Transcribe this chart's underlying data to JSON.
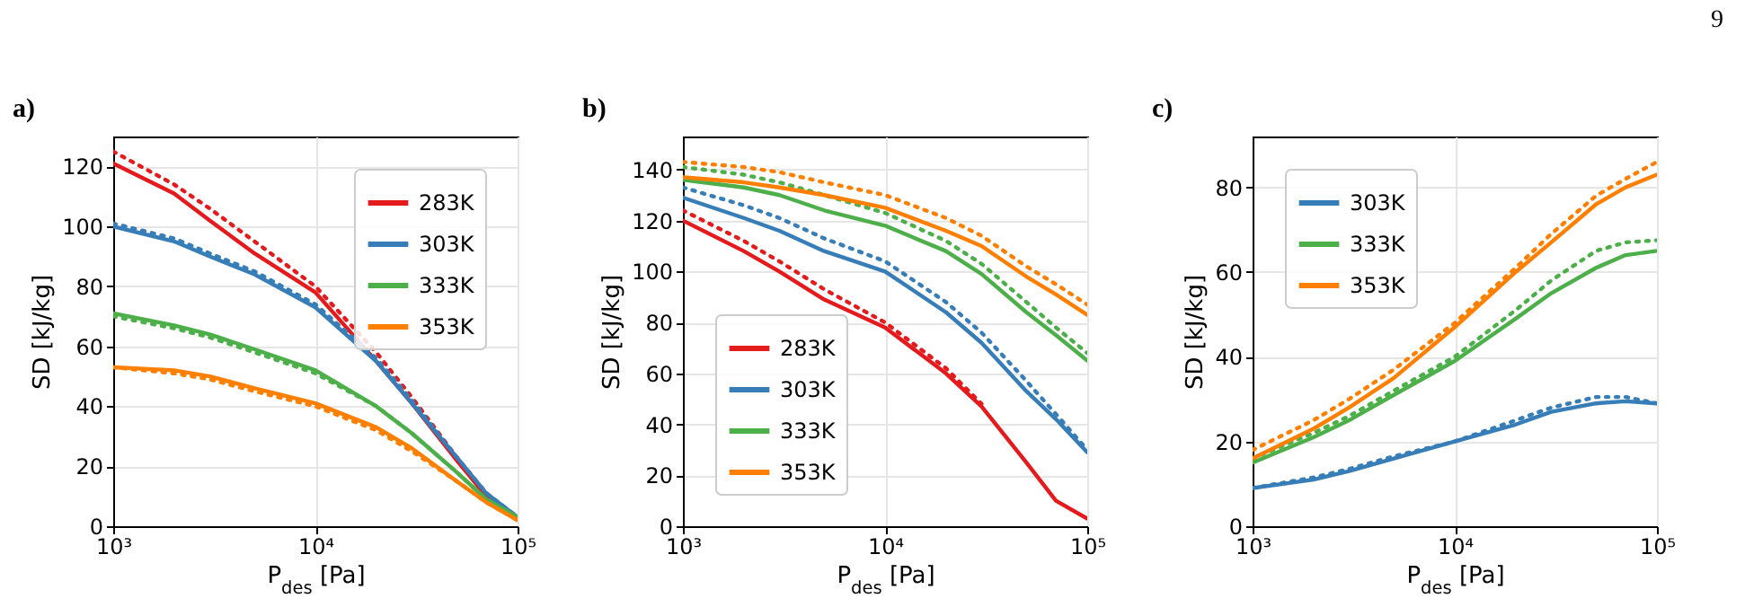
{
  "chart_data": [
    {
      "type": "line",
      "title": "a)",
      "xlabel": "P$_{des}$ [Pa]",
      "ylabel": "SD [kJ/kg]",
      "log": "x",
      "grid": true,
      "legend": "top right",
      "line_style": "solid",
      "marker": "none",
      "x": [
        1000,
        2000,
        3000,
        5000,
        10000,
        20000,
        30000,
        50000,
        70000,
        100000
      ],
      "xlim": [
        1000,
        100000
      ],
      "xticks": [
        {
          "value": 1000,
          "label": "10³"
        },
        {
          "value": 10000,
          "label": "10⁴"
        },
        {
          "value": 100000,
          "label": "10⁵"
        }
      ],
      "ylim": [
        0,
        130
      ],
      "yticks": [
        0,
        20,
        40,
        60,
        80,
        100,
        120
      ],
      "series": [
        {
          "name": "283K",
          "color": "#e41a1c",
          "values": [
            121,
            111,
            102,
            91,
            78,
            55,
            41,
            22,
            10,
            3
          ]
        },
        {
          "color": "#e41a1c",
          "line_style": "dotted",
          "values": [
            125,
            114,
            106,
            95,
            80,
            58,
            43,
            23,
            11,
            3
          ]
        },
        {
          "name": "303K",
          "color": "#377eb8",
          "values": [
            100,
            95,
            90,
            84,
            73,
            55,
            41,
            23,
            11,
            3
          ]
        },
        {
          "color": "#377eb8",
          "line_style": "dotted",
          "values": [
            101,
            96,
            91,
            85,
            74,
            56,
            42,
            23,
            11,
            3
          ]
        },
        {
          "name": "333K",
          "color": "#4daf4a",
          "values": [
            71,
            67,
            64,
            59,
            52,
            40,
            31,
            18,
            9,
            3
          ]
        },
        {
          "color": "#4daf4a",
          "line_style": "dotted",
          "values": [
            70,
            66,
            63,
            58,
            51,
            40,
            31,
            18,
            9,
            3
          ]
        },
        {
          "name": "353K",
          "color": "#ff7f00",
          "values": [
            53,
            52,
            50,
            46,
            41,
            33,
            26,
            15,
            8,
            2
          ]
        },
        {
          "color": "#ff7f00",
          "line_style": "dotted",
          "values": [
            53,
            51,
            49,
            45,
            40,
            32,
            25,
            15,
            8,
            2
          ]
        }
      ]
    },
    {
      "type": "line",
      "title": "b)",
      "xlabel": "P$_{des}$ [Pa]",
      "ylabel": "SD [kJ/kg]",
      "log": "x",
      "grid": true,
      "legend": "bottom left",
      "line_style": "solid",
      "marker": "none",
      "x": [
        1000,
        2000,
        3000,
        5000,
        10000,
        20000,
        30000,
        50000,
        70000,
        100000
      ],
      "xlim": [
        1000,
        100000
      ],
      "xticks": [
        {
          "value": 1000,
          "label": "10³"
        },
        {
          "value": 10000,
          "label": "10⁴"
        },
        {
          "value": 100000,
          "label": "10⁵"
        }
      ],
      "ylim": [
        0,
        153
      ],
      "yticks": [
        0,
        20,
        40,
        60,
        80,
        100,
        120,
        140
      ],
      "series": [
        {
          "name": "283K",
          "color": "#e41a1c",
          "values": [
            120,
            108,
            100,
            89,
            78,
            60,
            47,
            25,
            10,
            3
          ]
        },
        {
          "color": "#e41a1c",
          "line_style": "dotted",
          "values": [
            124,
            112,
            104,
            93,
            80,
            62,
            48,
            null,
            null,
            null
          ]
        },
        {
          "name": "303K",
          "color": "#377eb8",
          "values": [
            129,
            121,
            116,
            108,
            100,
            84,
            72,
            53,
            42,
            29
          ]
        },
        {
          "color": "#377eb8",
          "line_style": "dotted",
          "values": [
            133,
            126,
            121,
            113,
            104,
            88,
            76,
            57,
            44,
            30
          ]
        },
        {
          "name": "333K",
          "color": "#4daf4a",
          "values": [
            136,
            133,
            130,
            124,
            118,
            108,
            99,
            84,
            75,
            65
          ]
        },
        {
          "color": "#4daf4a",
          "line_style": "dotted",
          "values": [
            141,
            138,
            135,
            130,
            123,
            112,
            103,
            88,
            78,
            68
          ]
        },
        {
          "name": "353K",
          "color": "#ff7f00",
          "values": [
            137,
            135,
            133,
            130,
            125,
            116,
            110,
            98,
            91,
            83
          ]
        },
        {
          "color": "#ff7f00",
          "line_style": "dotted",
          "values": [
            143,
            141,
            139,
            135,
            130,
            121,
            114,
            102,
            95,
            87
          ]
        }
      ]
    },
    {
      "type": "line",
      "title": "c)",
      "xlabel": "P$_{des}$ [Pa]",
      "ylabel": "SD [kJ/kg]",
      "log": "x",
      "grid": true,
      "legend": "top left",
      "line_style": "solid",
      "marker": "none",
      "annotations": [
        "9"
      ],
      "x": [
        1000,
        2000,
        3000,
        5000,
        10000,
        20000,
        30000,
        50000,
        70000,
        100000
      ],
      "xlim": [
        1000,
        100000
      ],
      "xticks": [
        {
          "value": 1000,
          "label": "10³"
        },
        {
          "value": 10000,
          "label": "10⁴"
        },
        {
          "value": 100000,
          "label": "10⁵"
        }
      ],
      "ylim": [
        0,
        92
      ],
      "yticks": [
        0,
        20,
        40,
        60,
        80
      ],
      "series": [
        {
          "name": "303K",
          "color": "#377eb8",
          "values": [
            9,
            11,
            13,
            16,
            20,
            24,
            27,
            29,
            29.5,
            29
          ]
        },
        {
          "color": "#377eb8",
          "line_style": "dotted",
          "values": [
            9,
            11.5,
            13.5,
            16.5,
            20,
            25,
            28,
            30.5,
            30.5,
            29
          ]
        },
        {
          "name": "333K",
          "color": "#4daf4a",
          "values": [
            15,
            21,
            25,
            31,
            39,
            49,
            55,
            61,
            64,
            65
          ]
        },
        {
          "color": "#4daf4a",
          "line_style": "dotted",
          "values": [
            16,
            22,
            26,
            32,
            40,
            51,
            58,
            65,
            67,
            67.5
          ]
        },
        {
          "name": "353K",
          "color": "#ff7f00",
          "values": [
            16,
            23,
            28,
            35,
            47,
            60,
            67,
            76,
            80,
            83
          ]
        },
        {
          "color": "#ff7f00",
          "line_style": "dotted",
          "values": [
            18,
            25,
            30,
            37,
            48,
            61,
            69,
            78,
            82,
            86
          ]
        }
      ]
    }
  ]
}
